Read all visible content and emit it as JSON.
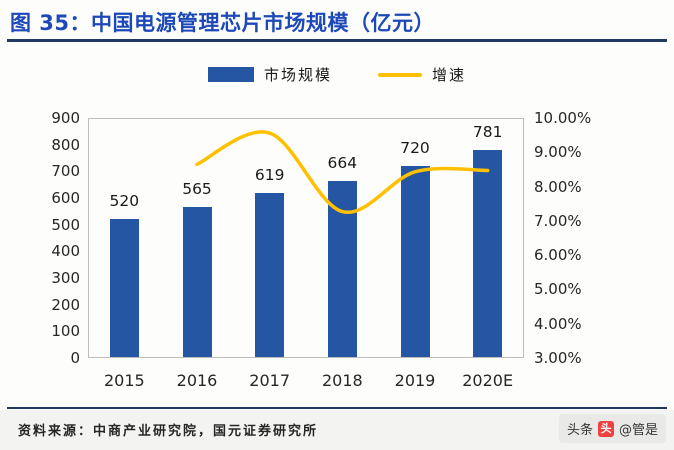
{
  "header": {
    "title": "图 35：中国电源管理芯片市场规模（亿元）"
  },
  "chart_data": {
    "type": "bar",
    "combo": "bar+line",
    "title": "中国电源管理芯片市场规模（亿元）",
    "categories": [
      "2015",
      "2016",
      "2017",
      "2018",
      "2019",
      "2020E"
    ],
    "series": [
      {
        "name": "市场规模",
        "type": "bar",
        "axis": "left",
        "color": "#2456a4",
        "values": [
          520,
          565,
          619,
          664,
          720,
          781
        ]
      },
      {
        "name": "增速",
        "type": "line",
        "axis": "right",
        "color": "#ffc000",
        "values": [
          null,
          8.65,
          9.56,
          7.27,
          8.43,
          8.47
        ]
      }
    ],
    "bar_labels": [
      "520",
      "565",
      "619",
      "664",
      "720",
      "781"
    ],
    "left_axis": {
      "min": 0,
      "max": 900,
      "step": 100,
      "labels": [
        "0",
        "100",
        "200",
        "300",
        "400",
        "500",
        "600",
        "700",
        "800",
        "900"
      ]
    },
    "right_axis": {
      "min": 3,
      "max": 10,
      "step": 1,
      "labels": [
        "3.00%",
        "4.00%",
        "5.00%",
        "6.00%",
        "7.00%",
        "8.00%",
        "9.00%",
        "10.00%"
      ]
    },
    "legend_position": "top",
    "grid": false
  },
  "footer": {
    "source": "资料来源：中商产业研究院，国元证券研究所"
  },
  "watermark": {
    "platform": "头条",
    "icon_glyph": "头",
    "handle": "@管是"
  }
}
